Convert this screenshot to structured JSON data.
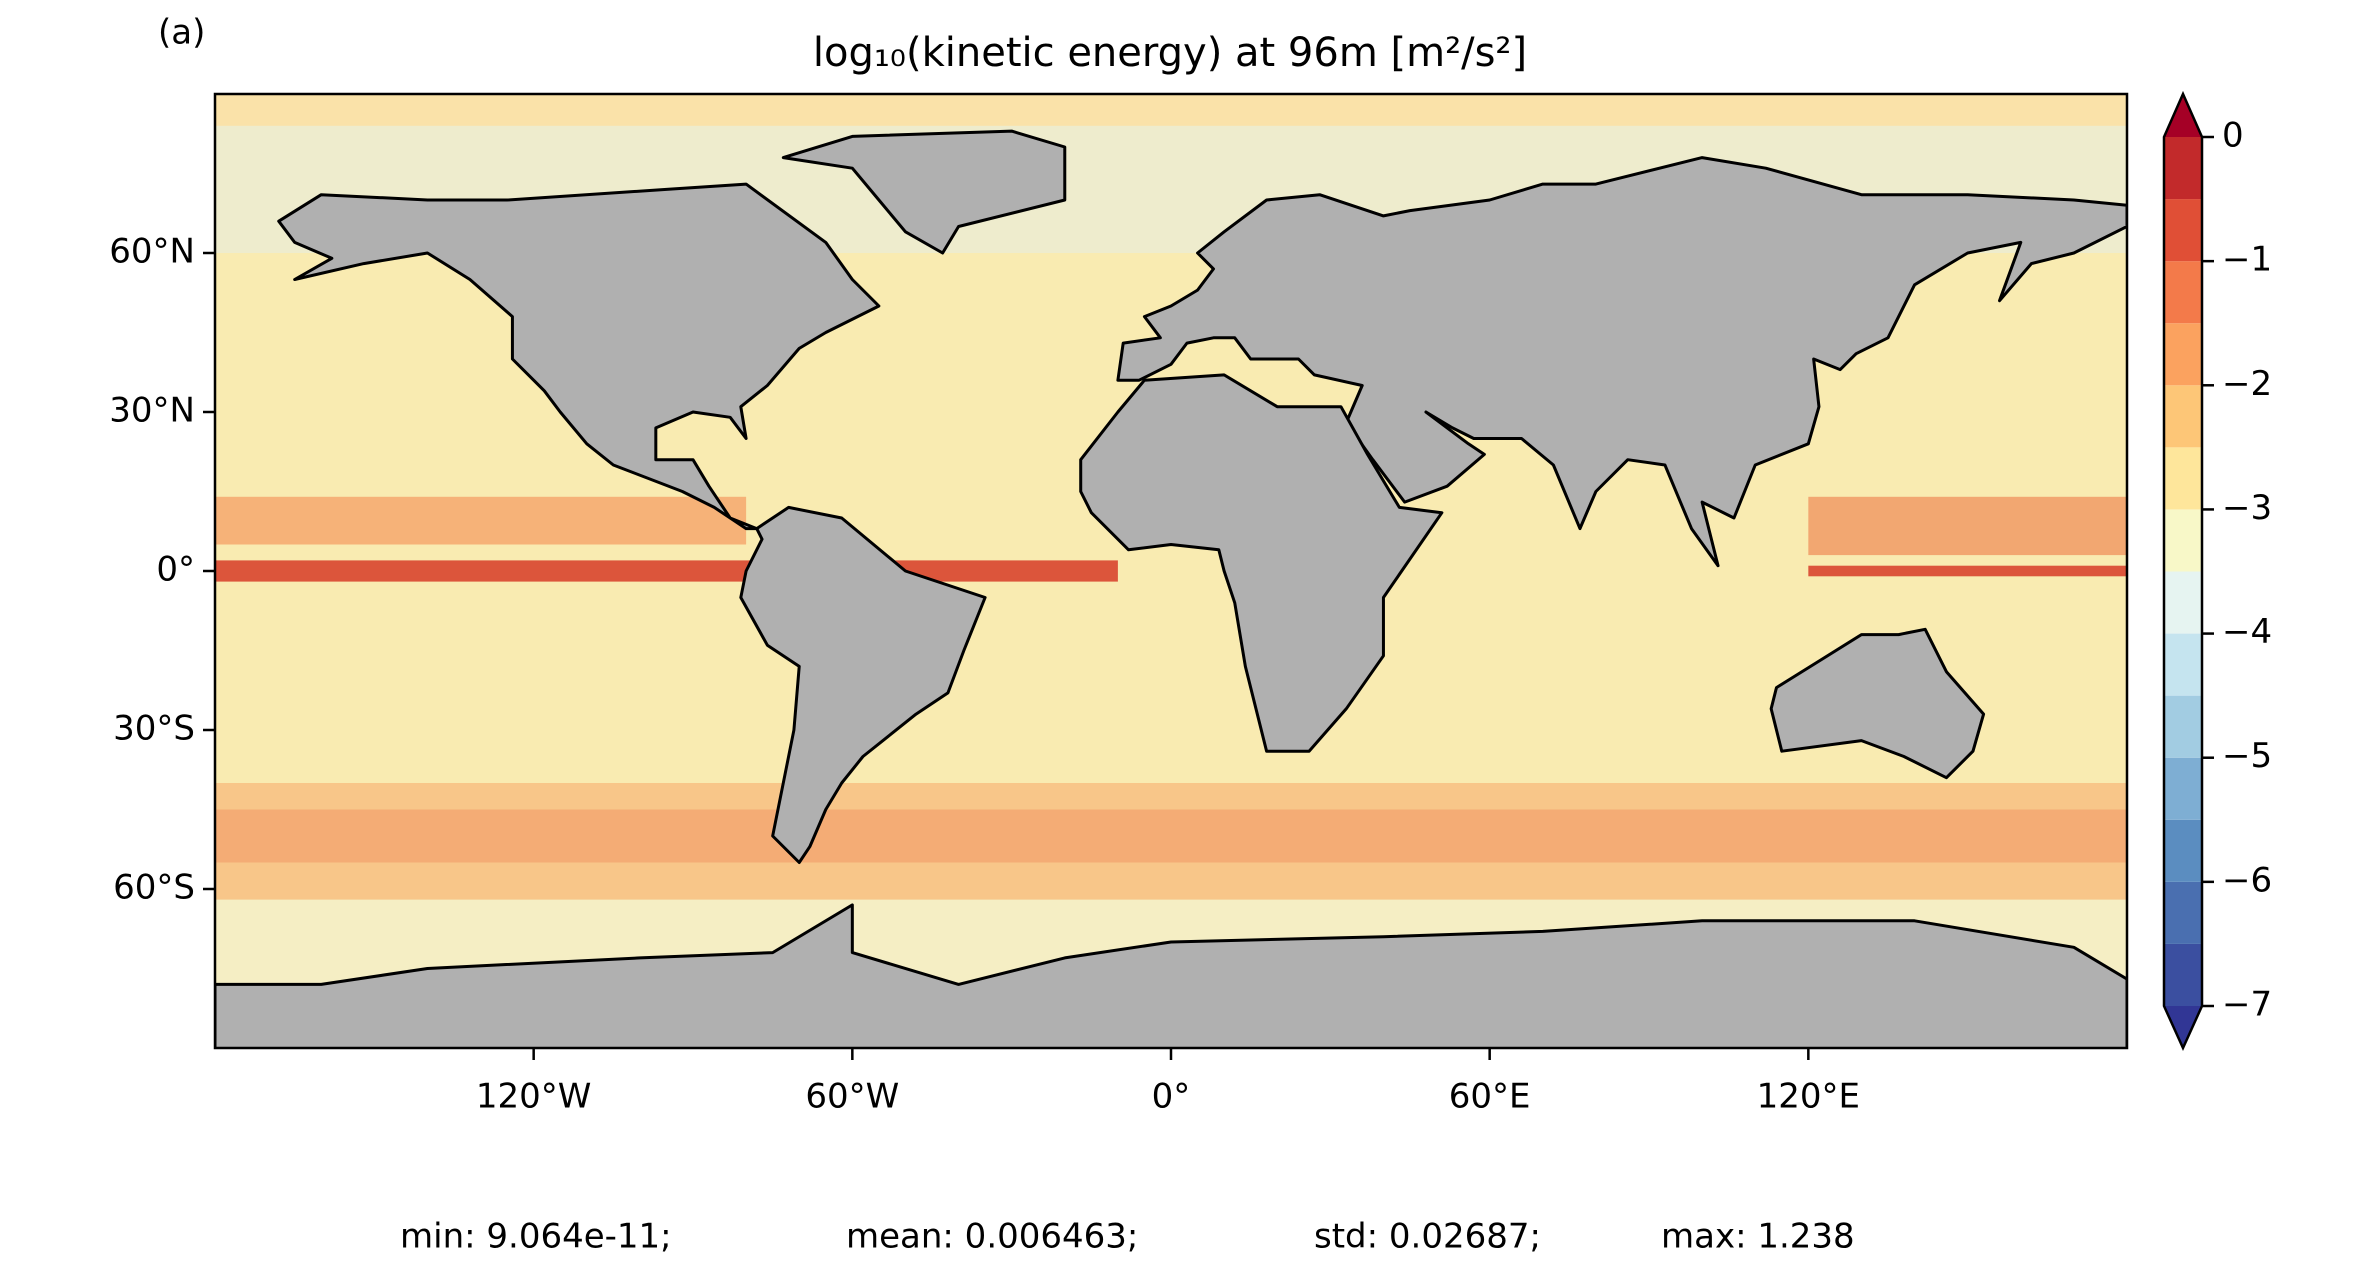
{
  "panel_label": "(a)",
  "title": "log₁₀(kinetic energy) at 96m [m²/s²]",
  "map": {
    "xlim": [
      -180,
      180
    ],
    "ylim": [
      -90,
      90
    ],
    "xticks": [
      {
        "value": -120,
        "label": "120°W"
      },
      {
        "value": -60,
        "label": "60°W"
      },
      {
        "value": 0,
        "label": "0°"
      },
      {
        "value": 60,
        "label": "60°E"
      },
      {
        "value": 120,
        "label": "120°E"
      }
    ],
    "yticks": [
      {
        "value": 60,
        "label": "60°N"
      },
      {
        "value": 30,
        "label": "30°N"
      },
      {
        "value": 0,
        "label": "0°"
      },
      {
        "value": -30,
        "label": "30°S"
      },
      {
        "value": -60,
        "label": "60°S"
      }
    ]
  },
  "colorbar": {
    "lim": [
      -7,
      0
    ],
    "levels": [
      -7,
      -6.5,
      -6,
      -5.5,
      -5,
      -4.5,
      -4,
      -3.5,
      -3,
      -2.5,
      -2,
      -1.5,
      -1,
      -0.5,
      0
    ],
    "colors": [
      "#3b4fa0",
      "#4a6fb0",
      "#5b8dc0",
      "#7eaed3",
      "#a2cce2",
      "#c5e4ef",
      "#e6f4f1",
      "#f8f8c8",
      "#fee69b",
      "#fdc677",
      "#fba25f",
      "#f37a4a",
      "#e04f36",
      "#c22a2b"
    ],
    "under_color": "#313695",
    "over_color": "#a50026",
    "ticks": [
      0,
      {
        "value": -1,
        "label": "−1"
      },
      {
        "value": -2,
        "label": "−2"
      },
      {
        "value": -3,
        "label": "−3"
      },
      {
        "value": -4,
        "label": "−4"
      },
      {
        "value": -5,
        "label": "−5"
      },
      {
        "value": -6,
        "label": "−6"
      },
      {
        "value": -7,
        "label": "−7"
      }
    ]
  },
  "stats": [
    "min: 9.064e-11;",
    "mean: 0.006463;",
    "std: 0.02687;",
    "max: 1.238"
  ]
}
